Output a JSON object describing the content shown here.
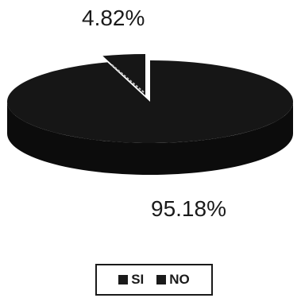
{
  "chart_data": {
    "type": "pie",
    "style": "3d",
    "title": "",
    "categories": [
      "SI",
      "NO"
    ],
    "values": [
      95.18,
      4.82
    ],
    "data_labels": [
      "95.18%",
      "4.82%"
    ],
    "exploded_slice": "NO",
    "legend": {
      "placement": "bottom",
      "items": [
        {
          "label": "SI",
          "color": "#1a1a1a"
        },
        {
          "label": "NO",
          "color": "#1a1a1a"
        }
      ]
    },
    "colors": {
      "slice_top": "#161616",
      "slice_side": "#0c0c0c",
      "highlight": "#bdbdbd"
    }
  }
}
